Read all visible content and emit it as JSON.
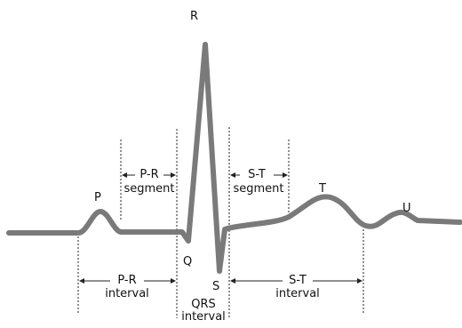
{
  "waves": {
    "p": "P",
    "q": "Q",
    "r": "R",
    "s": "S",
    "t": "T",
    "u": "U"
  },
  "segments": {
    "pr": {
      "line1": "P-R",
      "line2": "segment"
    },
    "st": {
      "line1": "S-T",
      "line2": "segment"
    }
  },
  "intervals": {
    "pr": {
      "line1": "P-R",
      "line2": "interval"
    },
    "qrs": {
      "line1": "QRS",
      "line2": "interval"
    },
    "st": {
      "line1": "S-T",
      "line2": "interval"
    }
  },
  "colors": {
    "trace": "#7a7a7a",
    "markers": "#222222",
    "text": "#111111"
  }
}
